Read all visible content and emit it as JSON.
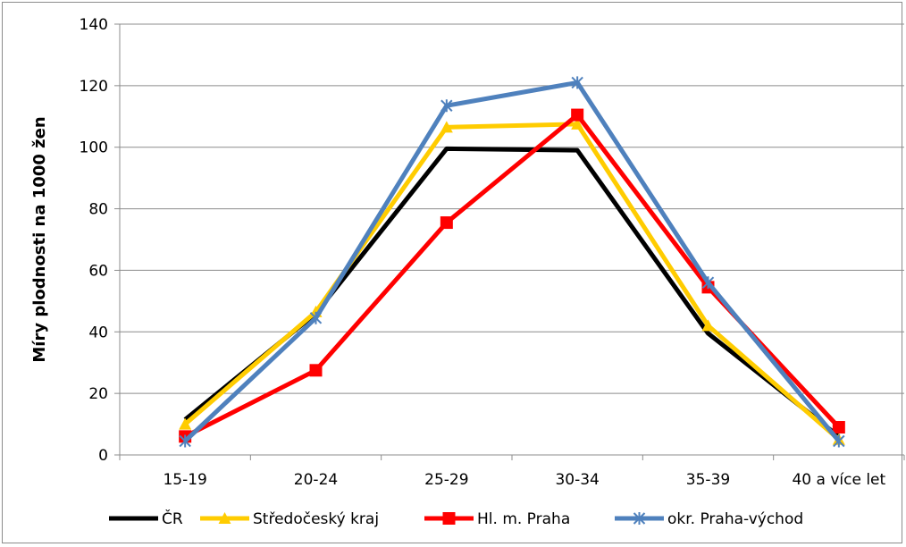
{
  "chart_data": {
    "type": "line",
    "title": "",
    "xlabel": "",
    "ylabel": "Míry plodnosti na 1000 žen",
    "categories": [
      "15-19",
      "20-24",
      "25-29",
      "30-34",
      "35-39",
      "40 a více let"
    ],
    "ylim": [
      0,
      140
    ],
    "yticks": [
      "0",
      "20",
      "40",
      "60",
      "80",
      "100",
      "120",
      "140"
    ],
    "grid": true,
    "legend_position": "bottom",
    "series": [
      {
        "name": "ČR",
        "color": "#000000",
        "marker": "none",
        "values": [
          11.5,
          46,
          99.5,
          99,
          39.5,
          6
        ]
      },
      {
        "name": "Středočeský kraj",
        "color": "#ffcc00",
        "marker": "triangle",
        "values": [
          10,
          46.5,
          106.5,
          107.5,
          42,
          5
        ]
      },
      {
        "name": "Hl. m. Praha",
        "color": "#ff0000",
        "marker": "square",
        "values": [
          6,
          27.5,
          75.5,
          110.5,
          54.5,
          9
        ]
      },
      {
        "name": "okr. Praha-východ",
        "color": "#4f81bd",
        "marker": "star",
        "values": [
          4.5,
          44.5,
          113.5,
          121,
          56,
          4.5
        ]
      }
    ]
  }
}
